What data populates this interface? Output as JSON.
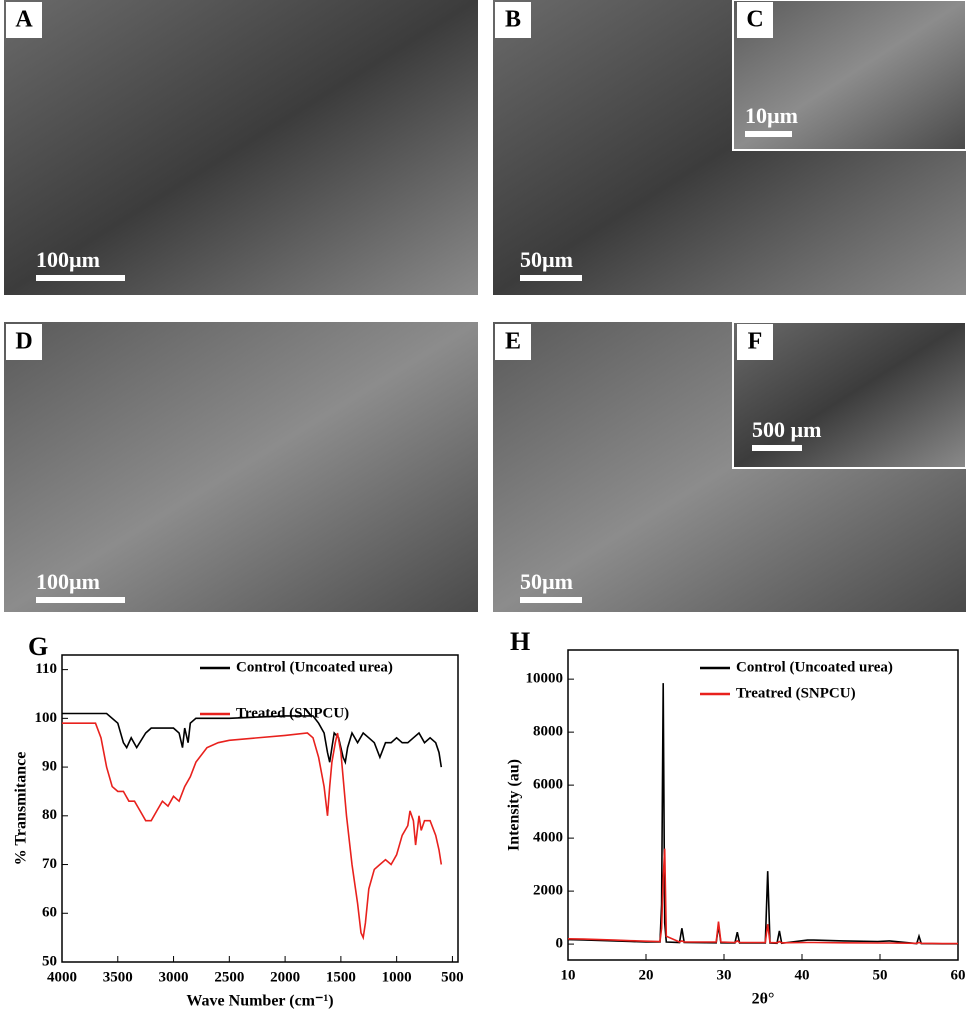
{
  "panels": [
    {
      "label": "A",
      "scale": "100µm"
    },
    {
      "label": "B",
      "scale": "50µm"
    },
    {
      "label": "C",
      "scale": "10µm"
    },
    {
      "label": "D",
      "scale": "100µm"
    },
    {
      "label": "E",
      "scale": "50µm"
    },
    {
      "label": "F",
      "scale": "500 µm"
    }
  ],
  "chart_data": [
    {
      "type": "line",
      "label": "G",
      "xlabel": "Wave Number (cm⁻¹)",
      "ylabel": "% Transmitance",
      "xlim": [
        4000,
        450
      ],
      "ylim": [
        50,
        113
      ],
      "xticks": [
        4000,
        3500,
        3000,
        2500,
        2000,
        1500,
        1000,
        500
      ],
      "yticks": [
        50,
        60,
        70,
        80,
        90,
        100,
        110
      ],
      "series": [
        {
          "name": "Control (Uncoated urea)",
          "color": "#000000",
          "x": [
            4000,
            3600,
            3500,
            3450,
            3420,
            3380,
            3330,
            3250,
            3200,
            3000,
            2950,
            2920,
            2900,
            2870,
            2850,
            2800,
            2500,
            2000,
            1750,
            1700,
            1650,
            1620,
            1600,
            1580,
            1560,
            1520,
            1480,
            1460,
            1440,
            1400,
            1350,
            1300,
            1250,
            1200,
            1150,
            1100,
            1050,
            1000,
            950,
            900,
            850,
            800,
            750,
            700,
            650,
            620,
            600
          ],
          "values": [
            101,
            101,
            99,
            95,
            94,
            96,
            94,
            97,
            98,
            98,
            97,
            94,
            98,
            95,
            99,
            100,
            100,
            100.5,
            100.5,
            99,
            97,
            93,
            91,
            94,
            97,
            96,
            92,
            91,
            94,
            97,
            95,
            97,
            96,
            95,
            92,
            95,
            95,
            96,
            95,
            95,
            96,
            97,
            95,
            96,
            95,
            93,
            90
          ]
        },
        {
          "name": "Treated (SNPCU)",
          "color": "#e8211d",
          "x": [
            4000,
            3700,
            3650,
            3600,
            3550,
            3500,
            3450,
            3400,
            3350,
            3300,
            3250,
            3200,
            3150,
            3100,
            3050,
            3000,
            2950,
            2900,
            2850,
            2800,
            2700,
            2600,
            2500,
            2000,
            1800,
            1750,
            1700,
            1650,
            1620,
            1600,
            1580,
            1550,
            1530,
            1500,
            1450,
            1400,
            1350,
            1320,
            1300,
            1280,
            1250,
            1200,
            1150,
            1100,
            1050,
            1000,
            950,
            900,
            880,
            850,
            830,
            800,
            780,
            750,
            700,
            650,
            620,
            600
          ],
          "values": [
            99,
            99,
            96,
            90,
            86,
            85,
            85,
            83,
            83,
            81,
            79,
            79,
            81,
            83,
            82,
            84,
            83,
            86,
            88,
            91,
            94,
            95,
            95.5,
            96.5,
            97,
            96,
            92,
            86,
            80,
            86,
            91,
            95,
            97,
            93,
            80,
            70,
            62,
            56,
            55,
            58,
            65,
            69,
            70,
            71,
            70,
            72,
            76,
            78,
            81,
            79,
            74,
            80,
            77,
            79,
            79,
            76,
            73,
            70
          ]
        }
      ]
    },
    {
      "type": "line",
      "label": "H",
      "xlabel": "2θ°",
      "ylabel": "Intensity (au)",
      "xlim": [
        10,
        60
      ],
      "ylim": [
        -600,
        11100
      ],
      "xticks": [
        10,
        20,
        30,
        40,
        50,
        60
      ],
      "yticks": [
        0,
        2000,
        4000,
        6000,
        8000,
        10000
      ],
      "series": [
        {
          "name": "Control (Uncoated urea)",
          "color": "#000000",
          "x": [
            10,
            12,
            14,
            16,
            18,
            19,
            20,
            21.8,
            22.0,
            22.2,
            22.4,
            22.6,
            24.3,
            24.6,
            24.9,
            29.0,
            29.3,
            29.6,
            31.4,
            31.7,
            32.0,
            35.3,
            35.6,
            35.9,
            36.8,
            37.1,
            37.4,
            40.7,
            41.5,
            45.3,
            49.7,
            51.2,
            54.7,
            55,
            55.3,
            58,
            60
          ],
          "values": [
            170,
            160,
            140,
            120,
            100,
            90,
            80,
            80,
            1500,
            9850,
            800,
            80,
            60,
            600,
            60,
            50,
            700,
            50,
            40,
            450,
            40,
            40,
            2750,
            40,
            30,
            500,
            30,
            150,
            150,
            120,
            100,
            120,
            20,
            300,
            20,
            10,
            10
          ]
        },
        {
          "name": "Treatred (SNPCU)",
          "color": "#e8211d",
          "x": [
            10,
            12,
            14,
            16,
            18,
            19,
            20,
            21.8,
            22.0,
            22.2,
            22.4,
            22.6,
            24.3,
            24.6,
            24.9,
            29.0,
            29.3,
            29.6,
            31.4,
            31.7,
            32.0,
            35.3,
            35.6,
            35.9,
            36.8,
            37.1,
            37.4,
            40.7,
            41.5,
            45.3,
            49.7,
            51.2,
            54.7,
            55,
            55.3,
            58,
            60
          ],
          "values": [
            200,
            190,
            170,
            150,
            130,
            120,
            110,
            100,
            600,
            2500,
            3600,
            300,
            80,
            120,
            80,
            80,
            850,
            80,
            60,
            120,
            60,
            60,
            750,
            60,
            50,
            100,
            50,
            60,
            60,
            50,
            40,
            40,
            30,
            60,
            30,
            20,
            20
          ]
        }
      ]
    }
  ]
}
